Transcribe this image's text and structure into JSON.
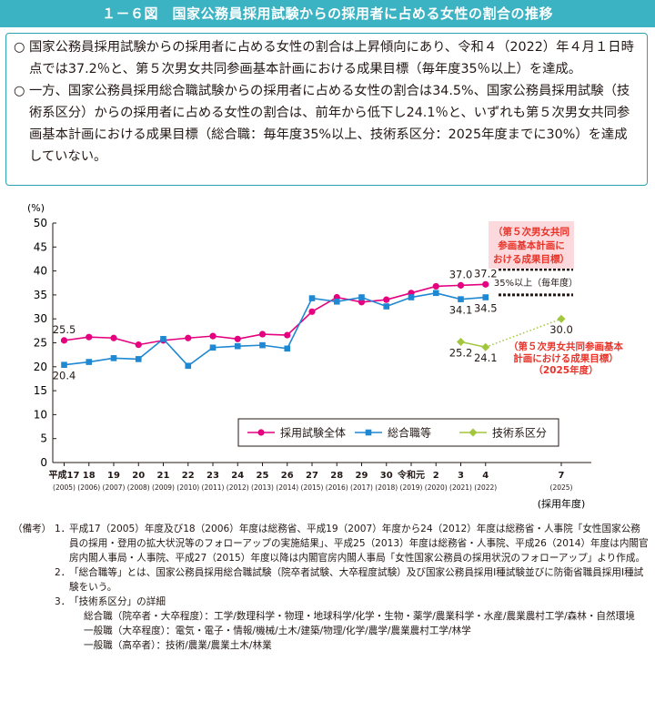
{
  "header": {
    "title": "１－６図　国家公務員採用試験からの採用者に占める女性の割合の推移"
  },
  "summary": [
    {
      "bullet": "○",
      "text": "国家公務員採用試験からの採用者に占める女性の割合は上昇傾向にあり、令和４（2022）年４月１日時点では37.2％と、第５次男女共同参画基本計画における成果目標（毎年度35％以上）を達成。"
    },
    {
      "bullet": "○",
      "text": "一方、国家公務員採用総合職試験からの採用者に占める女性の割合は34.5%、国家公務員採用試験（技術系区分）からの採用者に占める女性の割合は、前年から低下し24.1％と、いずれも第５次男女共同参画基本計画における成果目標（総合職：毎年度35%以上、技術系区分：2025年度までに30%）を達成していない。"
    }
  ],
  "chart_data": {
    "type": "line",
    "y_unit_label": "(%)",
    "ylim": [
      0,
      50
    ],
    "yticks": [
      0,
      5,
      10,
      15,
      20,
      25,
      30,
      35,
      40,
      45,
      50
    ],
    "x_unit_label": "(採用年度)",
    "categories": [
      {
        "era": "平成17",
        "year": "(2005)"
      },
      {
        "era": "18",
        "year": "(2006)"
      },
      {
        "era": "19",
        "year": "(2007)"
      },
      {
        "era": "20",
        "year": "(2008)"
      },
      {
        "era": "21",
        "year": "(2009)"
      },
      {
        "era": "22",
        "year": "(2010)"
      },
      {
        "era": "23",
        "year": "(2011)"
      },
      {
        "era": "24",
        "year": "(2012)"
      },
      {
        "era": "25",
        "year": "(2013)"
      },
      {
        "era": "26",
        "year": "(2014)"
      },
      {
        "era": "27",
        "year": "(2015)"
      },
      {
        "era": "28",
        "year": "(2016)"
      },
      {
        "era": "29",
        "year": "(2017)"
      },
      {
        "era": "30",
        "year": "(2018)"
      },
      {
        "era": "令和元",
        "year": "(2019)"
      },
      {
        "era": "2",
        "year": "(2020)"
      },
      {
        "era": "3",
        "year": "(2021)"
      },
      {
        "era": "4",
        "year": "(2022)"
      },
      {
        "era": "7",
        "year": "(2025)"
      }
    ],
    "series": [
      {
        "name": "採用試験全体",
        "color": "#e4007f",
        "marker": "circle",
        "values": [
          25.5,
          26.2,
          26.0,
          24.6,
          25.5,
          26.0,
          26.4,
          25.8,
          26.8,
          26.6,
          31.5,
          34.5,
          33.5,
          34.0,
          35.4,
          36.8,
          37.0,
          37.2,
          null
        ]
      },
      {
        "name": "総合職等",
        "color": "#1e88d2",
        "marker": "square",
        "values": [
          20.4,
          21.0,
          21.8,
          21.6,
          25.8,
          20.2,
          24.0,
          24.3,
          24.5,
          23.8,
          34.3,
          33.6,
          34.5,
          32.6,
          34.5,
          35.4,
          34.1,
          34.5,
          null
        ]
      },
      {
        "name": "技術系区分",
        "color": "#a2c63c",
        "marker": "diamond",
        "values": [
          null,
          null,
          null,
          null,
          null,
          null,
          null,
          null,
          null,
          null,
          null,
          null,
          null,
          null,
          null,
          null,
          25.2,
          24.1,
          30.0
        ]
      }
    ],
    "data_labels": [
      {
        "series": 0,
        "index": 0,
        "text": "25.5",
        "pos": "above"
      },
      {
        "series": 1,
        "index": 0,
        "text": "20.4",
        "pos": "below"
      },
      {
        "series": 0,
        "index": 16,
        "text": "37.0",
        "pos": "above"
      },
      {
        "series": 0,
        "index": 17,
        "text": "37.2",
        "pos": "above"
      },
      {
        "series": 1,
        "index": 16,
        "text": "34.1",
        "pos": "below"
      },
      {
        "series": 1,
        "index": 17,
        "text": "34.5",
        "pos": "below"
      },
      {
        "series": 2,
        "index": 16,
        "text": "25.2",
        "pos": "below"
      },
      {
        "series": 2,
        "index": 17,
        "text": "24.1",
        "pos": "below"
      },
      {
        "series": 2,
        "index": 18,
        "text": "30.0",
        "pos": "below"
      }
    ],
    "target_band": {
      "value": 35,
      "label": "35%以上（毎年度）"
    },
    "annotation_top": {
      "lines": [
        "（第５次男女共同",
        "参画基本計画に",
        "おける成果目標）"
      ],
      "color": "#e8342a",
      "background": "#fbd9dc"
    },
    "annotation_bottom": {
      "lines": [
        "（第５次男女共同参画基本",
        "計画における成果目標）",
        "（2025年度）"
      ],
      "color": "#e8342a"
    },
    "legend_position": "inside-lower-right",
    "grid": false
  },
  "notes": {
    "prefix": "（備考）",
    "items": [
      {
        "num": "1．",
        "text": "平成17（2005）年度及び18（2006）年度は総務省、平成19（2007）年度から24（2012）年度は総務省・人事院「女性国家公務員の採用・登用の拡大状況等のフォローアップの実施結果」、平成25（2013）年度は総務省・人事院、平成26（2014）年度は内閣官房内閣人事局・人事院、平成27（2015）年度以降は内閣官房内閣人事局「女性国家公務員の採用状況のフォローアップ」より作成。"
      },
      {
        "num": "2．",
        "text": "「総合職等」とは、国家公務員採用総合職試験（院卒者試験、大卒程度試験）及び国家公務員採用Ⅰ種試験並びに防衛省職員採用Ⅰ種試験をいう。"
      },
      {
        "num": "3．",
        "text": "「技術系区分」の詳細"
      }
    ],
    "details": [
      {
        "label": "総合職（院卒者・大卒程度）：",
        "text": "工学/数理科学・物理・地球科学/化学・生物・薬学/農業科学・水産/農業農村工学/森林・自然環境"
      },
      {
        "label": "一般職（大卒程度）：",
        "text": "電気・電子・情報/機械/土木/建築/物理/化学/農学/農業農村工学/林学"
      },
      {
        "label": "一般職（高卒者）：",
        "text": "技術/農業/農業土木/林業"
      }
    ]
  }
}
